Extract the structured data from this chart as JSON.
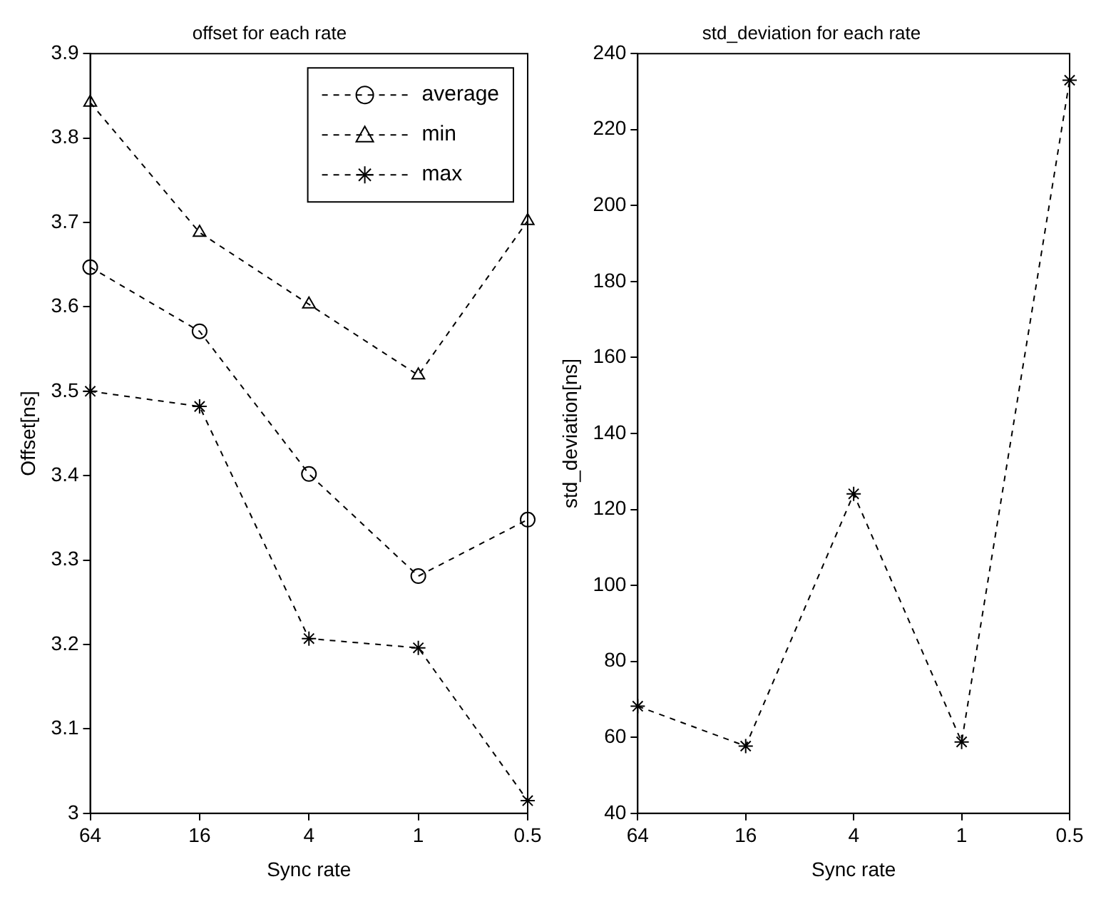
{
  "chart_data": [
    {
      "type": "line",
      "title": "offset for each rate",
      "xlabel": "Sync rate",
      "ylabel": "Offset[ns]",
      "categories": [
        "64",
        "16",
        "4",
        "1",
        "0.5"
      ],
      "series": [
        {
          "name": "average",
          "color": "#000000",
          "marker": "circle",
          "values": [
            3.647,
            3.571,
            3.402,
            3.281,
            3.348
          ]
        },
        {
          "name": "min",
          "color": "#000000",
          "marker": "triangle",
          "values": [
            3.842,
            3.688,
            3.603,
            3.519,
            3.702
          ]
        },
        {
          "name": "max",
          "color": "#000000",
          "marker": "cross",
          "values": [
            3.5,
            3.482,
            3.207,
            3.196,
            3.015
          ]
        }
      ],
      "ylim": [
        3,
        3.9
      ],
      "yticks": [
        3,
        3.1,
        3.2,
        3.3,
        3.4,
        3.5,
        3.6,
        3.7,
        3.8,
        3.9
      ],
      "grid": false,
      "legend": "top right",
      "line_style": "dashed"
    },
    {
      "type": "line",
      "title": "std_deviation for each rate",
      "xlabel": "Sync rate",
      "ylabel": "std_deviation[ns]",
      "categories": [
        "64",
        "16",
        "4",
        "1",
        "0.5"
      ],
      "series": [
        {
          "color": "#000000",
          "values": [
            68.2,
            57.7,
            124.1,
            58.8,
            233
          ]
        }
      ],
      "ylim": [
        40,
        240
      ],
      "yticks": [
        40,
        60,
        80,
        100,
        120,
        140,
        160,
        180,
        200,
        220,
        240
      ],
      "grid": false,
      "legend": false,
      "marker": "cross",
      "line_style": "dashed"
    }
  ]
}
